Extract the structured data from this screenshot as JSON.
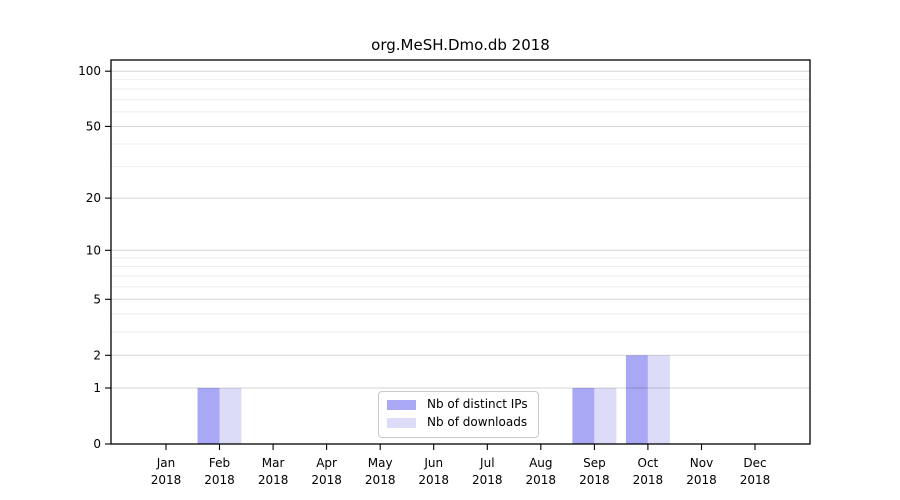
{
  "chart_data": {
    "type": "bar",
    "title": "org.MeSH.Dmo.db 2018",
    "categories": [
      "Jan",
      "Feb",
      "Mar",
      "Apr",
      "May",
      "Jun",
      "Jul",
      "Aug",
      "Sep",
      "Oct",
      "Nov",
      "Dec"
    ],
    "year_label": "2018",
    "series": [
      {
        "name": "Nb of distinct IPs",
        "color": "#a8a8f5",
        "values": [
          0,
          1,
          0,
          0,
          0,
          0,
          0,
          0,
          1,
          2,
          0,
          0
        ]
      },
      {
        "name": "Nb of downloads",
        "color": "#dcdcf8",
        "values": [
          0,
          1,
          0,
          0,
          0,
          0,
          0,
          0,
          1,
          2,
          0,
          0
        ]
      }
    ],
    "xlabel": "",
    "ylabel": "",
    "yscale": "log1p",
    "yticks": [
      0,
      1,
      2,
      5,
      10,
      20,
      50,
      100
    ],
    "minor_gridlines": [
      3,
      4,
      6,
      7,
      8,
      9,
      30,
      40,
      60,
      70,
      80,
      90
    ],
    "ylim": [
      0,
      115
    ],
    "grid": true,
    "legend_position": "lower center",
    "colors": {
      "axis": "#000000",
      "major_grid": "rgba(0,0,0,0.16)",
      "minor_grid": "rgba(0,0,0,0.07)",
      "background": "#ffffff"
    }
  }
}
